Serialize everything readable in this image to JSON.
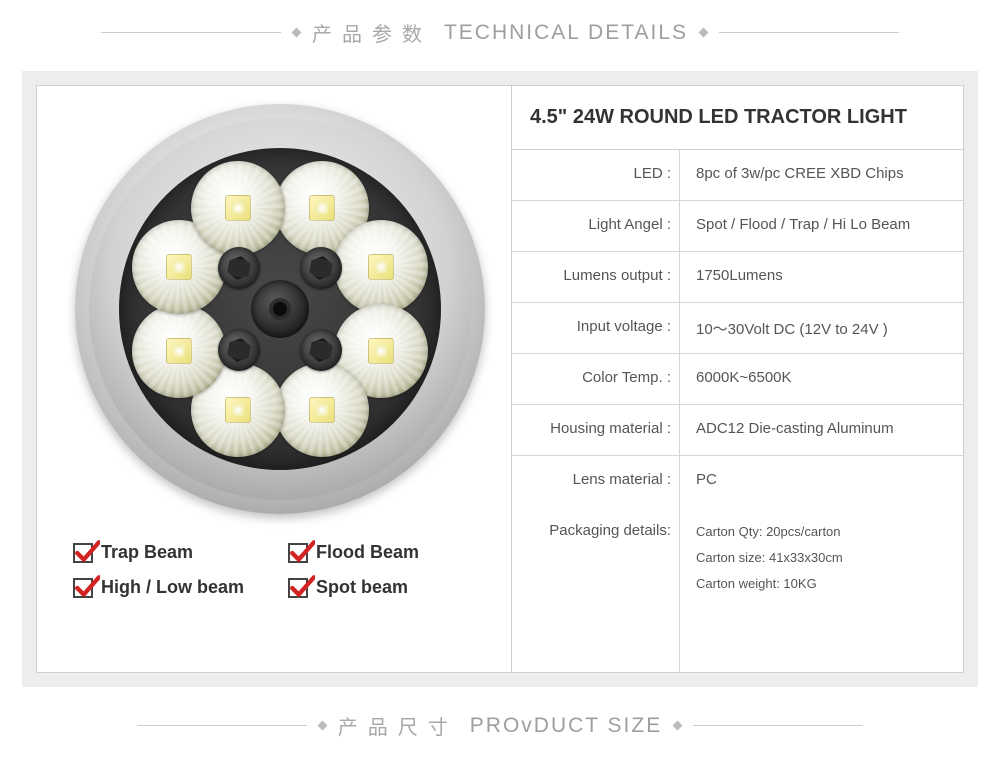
{
  "header": {
    "cn": "产品参数",
    "en": "TECHNICAL DETAILS"
  },
  "footer": {
    "cn": "产品尺寸",
    "en": "PROvDUCT SIZE"
  },
  "product": {
    "title": "4.5\" 24W ROUND LED TRACTOR LIGHT",
    "beams": {
      "0": "Trap Beam",
      "1": "Flood Beam",
      "2": "High / Low beam",
      "3": "Spot beam"
    },
    "specs": [
      {
        "label": "LED :",
        "value": "8pc of 3w/pc CREE XBD Chips"
      },
      {
        "label": "Light Angel :",
        "value": "Spot / Flood / Trap / Hi Lo Beam"
      },
      {
        "label": "Lumens output :",
        "value": "1750Lumens"
      },
      {
        "label": "Input voltage :",
        "value": "10～30Volt DC (12V to 24V )"
      },
      {
        "label": "Color Temp. :",
        "value": "6000K~6500K"
      },
      {
        "label": "Housing material :",
        "value": "ADC12 Die-casting Aluminum"
      },
      {
        "label": "Lens material :",
        "value": "PC"
      }
    ],
    "packaging": {
      "label": "Packaging details:",
      "lines": {
        "0": "Carton Qty: 20pcs/carton",
        "1": "Carton size: 41x33x30cm",
        "2": "Carton weight: 10KG"
      }
    }
  },
  "visual": {
    "chip_count": 8,
    "chip_radius_pct": 34,
    "screw_count": 4,
    "screw_radius_pct": 18,
    "colors": {
      "outer_ring_light": "#fefefe",
      "outer_ring_dark": "#5a5a5a",
      "face_dark": "#1c1c1c",
      "reflector_tint": "#dedecd",
      "die_yellow": "#e9e07a",
      "check_red": "#d22222",
      "text_gray": "#555555",
      "border_gray": "#cfcfcf",
      "panel_bg": "#ededed"
    }
  }
}
